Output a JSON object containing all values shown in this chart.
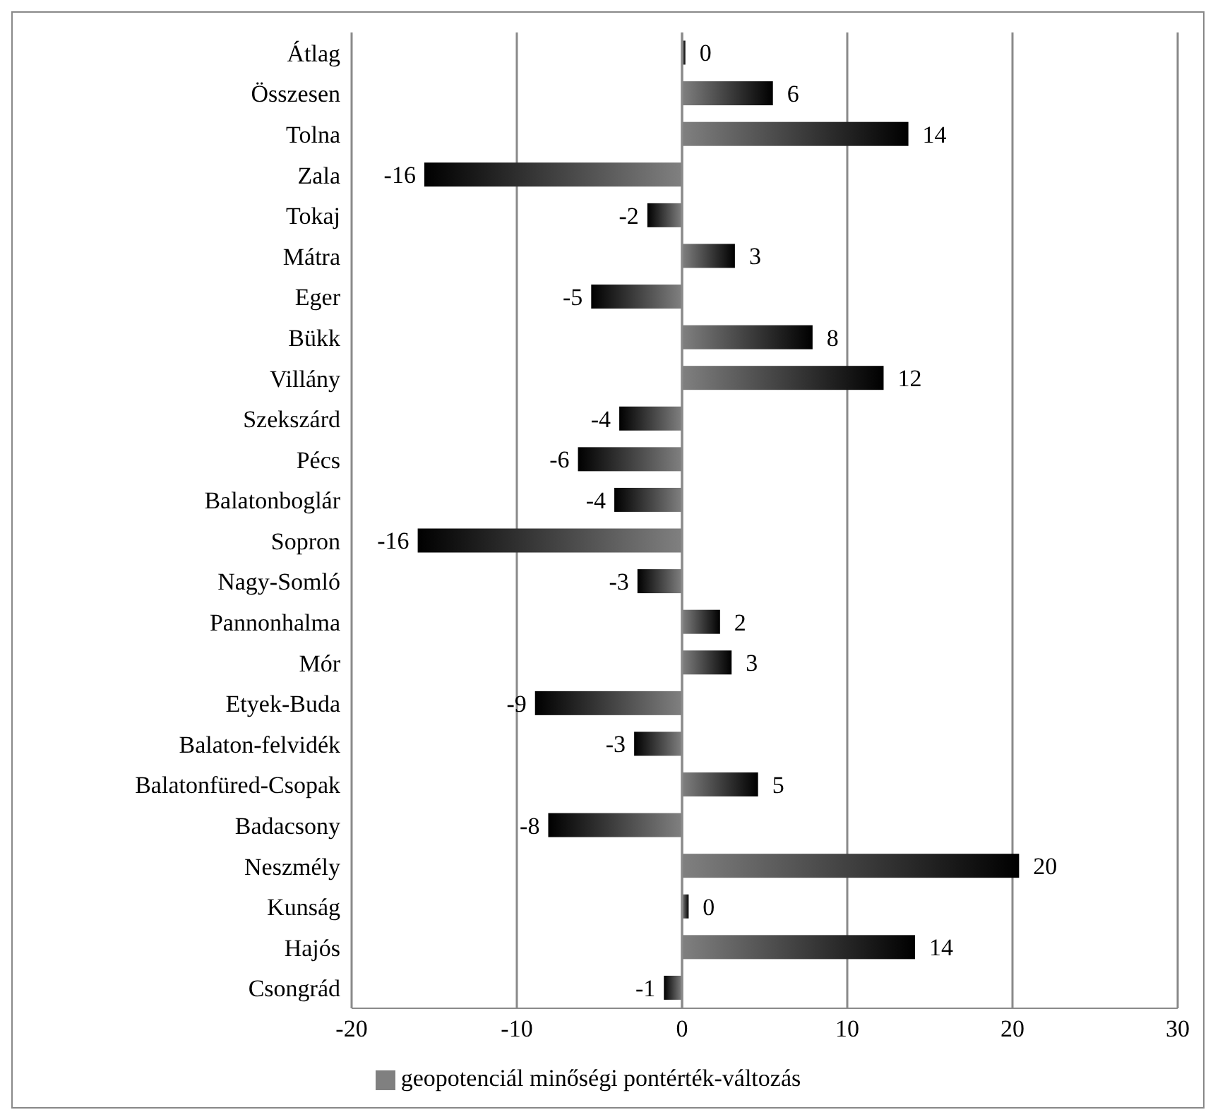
{
  "chart_data": {
    "type": "bar",
    "orientation": "horizontal",
    "categories": [
      "Átlag",
      "Összesen",
      "Tolna",
      "Zala",
      "Tokaj",
      "Mátra",
      "Eger",
      "Bükk",
      "Villány",
      "Szekszárd",
      "Pécs",
      "Balatonboglár",
      "Sopron",
      "Nagy-Somló",
      "Pannonhalma",
      "Mór",
      "Etyek-Buda",
      "Balaton-felvidék",
      "Balatonfüred-Csopak",
      "Badacsony",
      "Neszmély",
      "Kunság",
      "Hajós",
      "Csongrád"
    ],
    "series": [
      {
        "name": "geopotenciál minőségi pontérték-változás",
        "color": "#808080",
        "values": [
          0.2,
          5.5,
          13.7,
          -15.6,
          -2.1,
          3.2,
          -5.5,
          7.9,
          12.2,
          -3.8,
          -6.3,
          -4.1,
          -16.0,
          -2.7,
          2.3,
          3.0,
          -8.9,
          -2.9,
          4.6,
          -8.1,
          20.4,
          0.4,
          14.1,
          -1.1
        ],
        "value_labels": [
          "0",
          "6",
          "14",
          "-16",
          "-2",
          "3",
          "-5",
          "8",
          "12",
          "-4",
          "-6",
          "-4",
          "-16",
          "-3",
          "2",
          "3",
          "-9",
          "-3",
          "5",
          "-8",
          "20",
          "0",
          "14",
          "-1"
        ]
      }
    ],
    "xlim": [
      -20,
      30
    ],
    "xticks": [
      -20,
      -10,
      0,
      10,
      20,
      30
    ],
    "grid": "x",
    "legend": "bottom"
  }
}
